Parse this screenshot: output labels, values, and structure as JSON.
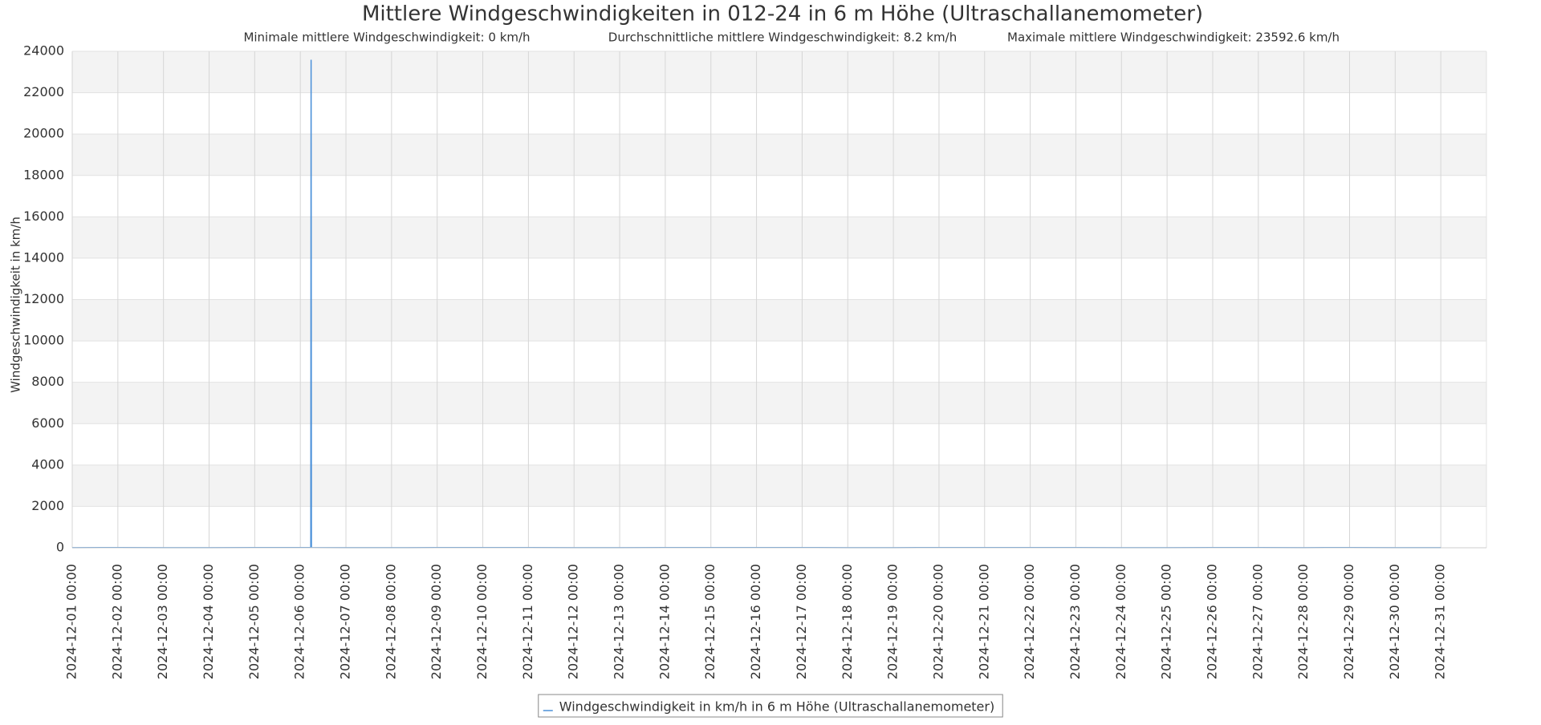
{
  "chart_data": {
    "type": "line",
    "title": "Mittlere Windgeschwindigkeiten in 012-24 in 6 m Höhe (Ultraschallanemometer)",
    "subtitles": [
      "Minimale mittlere Windgeschwindigkeit: 0 km/h",
      "Durchschnittliche mittlere Windgeschwindigkeit: 8.2 km/h",
      "Maximale mittlere Windgeschwindigkeit: 23592.6 km/h"
    ],
    "y_label": "Windgeschwindigkeit in km/h",
    "x": [
      "2024-12-01 00:00",
      "2024-12-02 00:00",
      "2024-12-03 00:00",
      "2024-12-04 00:00",
      "2024-12-05 00:00",
      "2024-12-06 00:00",
      "2024-12-06 05:30",
      "2024-12-06 05:40",
      "2024-12-06 05:50",
      "2024-12-07 00:00",
      "2024-12-08 00:00",
      "2024-12-09 00:00",
      "2024-12-10 00:00",
      "2024-12-11 00:00",
      "2024-12-12 00:00",
      "2024-12-13 00:00",
      "2024-12-14 00:00",
      "2024-12-15 00:00",
      "2024-12-16 00:00",
      "2024-12-17 00:00",
      "2024-12-18 00:00",
      "2024-12-19 00:00",
      "2024-12-20 00:00",
      "2024-12-21 00:00",
      "2024-12-22 00:00",
      "2024-12-23 00:00",
      "2024-12-24 00:00",
      "2024-12-25 00:00",
      "2024-12-26 00:00",
      "2024-12-27 00:00",
      "2024-12-28 00:00",
      "2024-12-29 00:00",
      "2024-12-30 00:00",
      "2024-12-31 00:00"
    ],
    "series": [
      {
        "name": "Windgeschwindigkeit in km/h in 6 m Höhe (Ultraschallanemometer)",
        "color": "#4a90d9",
        "values": [
          6,
          9,
          7,
          5,
          8,
          10,
          9,
          23592.6,
          8,
          7,
          6,
          9,
          11,
          8,
          5,
          7,
          9,
          12,
          10,
          8,
          6,
          7,
          9,
          8,
          10,
          11,
          7,
          6,
          8,
          9,
          7,
          8,
          6,
          5
        ]
      }
    ],
    "xlim": [
      "2024-12-01 00:00",
      "2025-01-01 00:00"
    ],
    "xticks": [
      "2024-12-01 00:00",
      "2024-12-02 00:00",
      "2024-12-03 00:00",
      "2024-12-04 00:00",
      "2024-12-05 00:00",
      "2024-12-06 00:00",
      "2024-12-07 00:00",
      "2024-12-08 00:00",
      "2024-12-09 00:00",
      "2024-12-10 00:00",
      "2024-12-11 00:00",
      "2024-12-12 00:00",
      "2024-12-13 00:00",
      "2024-12-14 00:00",
      "2024-12-15 00:00",
      "2024-12-16 00:00",
      "2024-12-17 00:00",
      "2024-12-18 00:00",
      "2024-12-19 00:00",
      "2024-12-20 00:00",
      "2024-12-21 00:00",
      "2024-12-22 00:00",
      "2024-12-23 00:00",
      "2024-12-24 00:00",
      "2024-12-25 00:00",
      "2024-12-26 00:00",
      "2024-12-27 00:00",
      "2024-12-28 00:00",
      "2024-12-29 00:00",
      "2024-12-30 00:00",
      "2024-12-31 00:00"
    ],
    "ylim": [
      0,
      24000
    ],
    "yticks": [
      0,
      2000,
      4000,
      6000,
      8000,
      10000,
      12000,
      14000,
      16000,
      18000,
      20000,
      22000,
      24000
    ],
    "grid": true,
    "legend": "bottom"
  }
}
